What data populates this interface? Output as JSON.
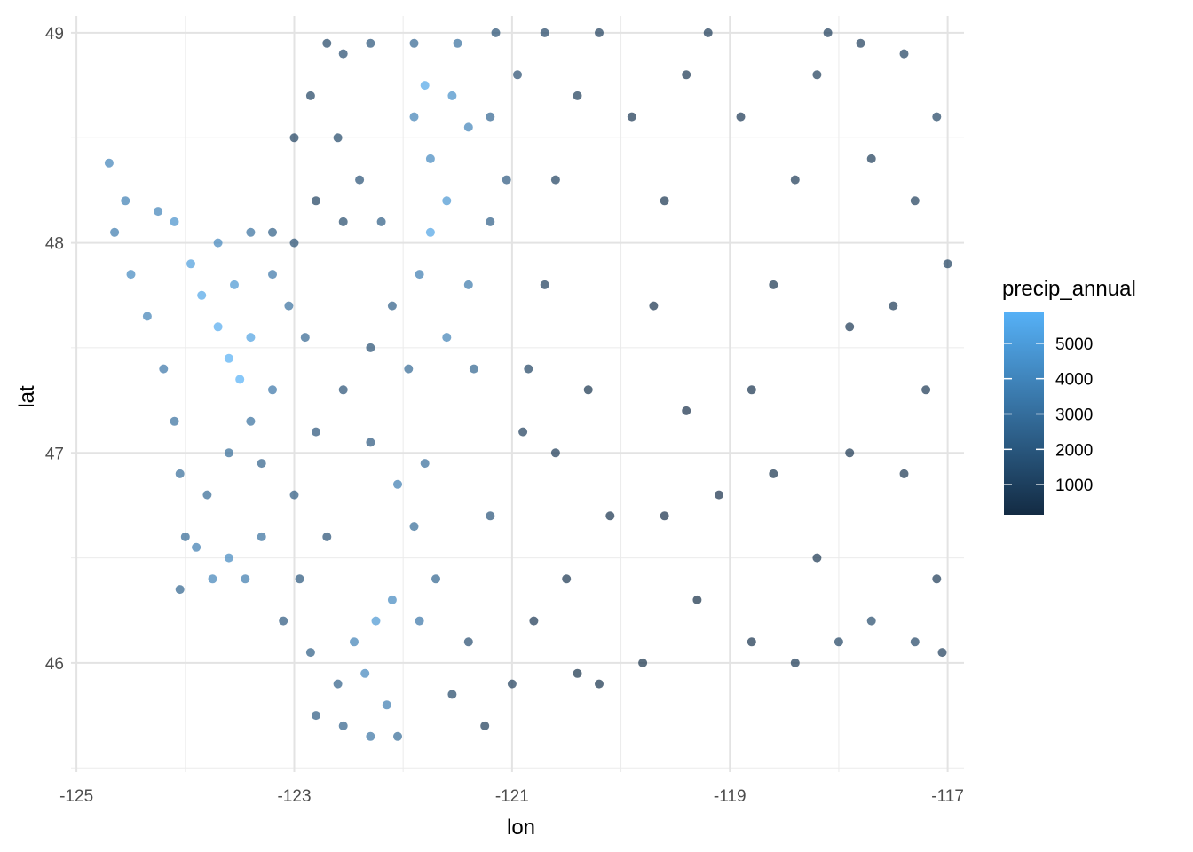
{
  "chart_data": {
    "type": "scatter",
    "xlabel": "lon",
    "ylabel": "lat",
    "xlim": [
      -125.05,
      -116.85
    ],
    "ylim": [
      45.48,
      49.08
    ],
    "x_ticks": [
      -125,
      -123,
      -121,
      -119,
      -117
    ],
    "x_tick_labels": [
      "-125",
      "-123",
      "-121",
      "-119",
      "-117"
    ],
    "y_ticks": [
      46,
      47,
      48,
      49
    ],
    "y_tick_labels": [
      "46",
      "47",
      "48",
      "49"
    ],
    "grid": true,
    "point_opacity": 0.7,
    "color_scale": {
      "variable": "precip_annual",
      "title": "precip_annual",
      "min": 150,
      "max": 5900,
      "low_color": "#132B43",
      "high_color": "#56B1F7",
      "breaks": [
        1000,
        2000,
        3000,
        4000,
        5000
      ],
      "break_labels": [
        "1000",
        "2000",
        "3000",
        "4000",
        "5000"
      ],
      "legend_position": "right"
    },
    "points": [
      [
        -124.7,
        48.38,
        3900
      ],
      [
        -124.55,
        48.2,
        3700
      ],
      [
        -124.65,
        48.05,
        3500
      ],
      [
        -124.5,
        47.85,
        4100
      ],
      [
        -124.35,
        47.65,
        3800
      ],
      [
        -124.2,
        47.4,
        3300
      ],
      [
        -124.1,
        47.15,
        3000
      ],
      [
        -124.05,
        46.9,
        2900
      ],
      [
        -124.0,
        46.6,
        2700
      ],
      [
        -124.05,
        46.35,
        2500
      ],
      [
        -123.9,
        46.55,
        3600
      ],
      [
        -123.75,
        46.4,
        3900
      ],
      [
        -123.6,
        46.5,
        4100
      ],
      [
        -123.45,
        46.4,
        3500
      ],
      [
        -123.3,
        46.6,
        3000
      ],
      [
        -124.25,
        48.15,
        3900
      ],
      [
        -124.1,
        48.1,
        4500
      ],
      [
        -123.95,
        47.9,
        5000
      ],
      [
        -123.85,
        47.75,
        5400
      ],
      [
        -123.7,
        47.6,
        5600
      ],
      [
        -123.6,
        47.45,
        5800
      ],
      [
        -123.5,
        47.35,
        5900
      ],
      [
        -123.4,
        47.55,
        5200
      ],
      [
        -123.55,
        47.8,
        4700
      ],
      [
        -123.7,
        48.0,
        4000
      ],
      [
        -123.4,
        48.05,
        3000
      ],
      [
        -123.2,
        48.05,
        2200
      ],
      [
        -123.0,
        48.0,
        1600
      ],
      [
        -123.2,
        47.85,
        3300
      ],
      [
        -123.05,
        47.7,
        3000
      ],
      [
        -122.9,
        47.55,
        2600
      ],
      [
        -123.2,
        47.3,
        3300
      ],
      [
        -123.4,
        47.15,
        3000
      ],
      [
        -123.6,
        47.0,
        2800
      ],
      [
        -123.8,
        46.8,
        2700
      ],
      [
        -123.3,
        46.95,
        2400
      ],
      [
        -123.0,
        46.8,
        2100
      ],
      [
        -122.8,
        47.1,
        1800
      ],
      [
        -122.7,
        46.6,
        1700
      ],
      [
        -122.95,
        46.4,
        1900
      ],
      [
        -123.1,
        46.2,
        2000
      ],
      [
        -122.85,
        46.05,
        2200
      ],
      [
        -122.6,
        45.9,
        2300
      ],
      [
        -122.45,
        46.1,
        3800
      ],
      [
        -122.25,
        46.2,
        4700
      ],
      [
        -122.35,
        45.95,
        4000
      ],
      [
        -122.15,
        45.8,
        3600
      ],
      [
        -122.3,
        45.65,
        3200
      ],
      [
        -122.05,
        45.65,
        2800
      ],
      [
        -122.55,
        45.7,
        2400
      ],
      [
        -122.8,
        45.75,
        2100
      ],
      [
        -122.1,
        46.3,
        4100
      ],
      [
        -121.85,
        46.2,
        3300
      ],
      [
        -121.7,
        46.4,
        2500
      ],
      [
        -121.9,
        46.65,
        2800
      ],
      [
        -122.05,
        46.85,
        3600
      ],
      [
        -121.8,
        46.95,
        2900
      ],
      [
        -122.3,
        47.05,
        2000
      ],
      [
        -122.55,
        47.3,
        1700
      ],
      [
        -122.3,
        47.5,
        1600
      ],
      [
        -122.1,
        47.7,
        2300
      ],
      [
        -121.85,
        47.85,
        3600
      ],
      [
        -121.75,
        48.05,
        5300
      ],
      [
        -121.6,
        48.2,
        4700
      ],
      [
        -121.75,
        48.4,
        4100
      ],
      [
        -121.9,
        48.6,
        3800
      ],
      [
        -121.8,
        48.75,
        5400
      ],
      [
        -121.55,
        48.7,
        4400
      ],
      [
        -121.4,
        48.55,
        3900
      ],
      [
        -121.5,
        48.95,
        3000
      ],
      [
        -121.9,
        48.95,
        2600
      ],
      [
        -122.3,
        48.95,
        1800
      ],
      [
        -122.55,
        48.9,
        1500
      ],
      [
        -122.7,
        48.95,
        1200
      ],
      [
        -122.85,
        48.7,
        1100
      ],
      [
        -123.0,
        48.5,
        1000
      ],
      [
        -122.6,
        48.5,
        1300
      ],
      [
        -122.4,
        48.3,
        1700
      ],
      [
        -122.2,
        48.1,
        2200
      ],
      [
        -122.55,
        48.1,
        1400
      ],
      [
        -122.8,
        48.2,
        1000
      ],
      [
        -121.95,
        47.4,
        2700
      ],
      [
        -121.6,
        47.55,
        3800
      ],
      [
        -121.35,
        47.4,
        2500
      ],
      [
        -121.4,
        47.8,
        3400
      ],
      [
        -121.2,
        48.1,
        2300
      ],
      [
        -121.05,
        48.3,
        2000
      ],
      [
        -121.2,
        48.6,
        2600
      ],
      [
        -120.95,
        48.8,
        1500
      ],
      [
        -121.2,
        46.7,
        1800
      ],
      [
        -121.4,
        46.1,
        1500
      ],
      [
        -121.55,
        45.85,
        1300
      ],
      [
        -121.25,
        45.7,
        800
      ],
      [
        -121.0,
        45.9,
        900
      ],
      [
        -120.8,
        46.2,
        600
      ],
      [
        -120.6,
        47.0,
        700
      ],
      [
        -120.85,
        47.4,
        1100
      ],
      [
        -120.7,
        47.8,
        900
      ],
      [
        -120.6,
        48.3,
        1000
      ],
      [
        -120.4,
        48.7,
        800
      ],
      [
        -120.2,
        49.0,
        900
      ],
      [
        -119.9,
        48.6,
        600
      ],
      [
        -119.6,
        48.2,
        500
      ],
      [
        -119.7,
        47.7,
        400
      ],
      [
        -119.4,
        47.2,
        300
      ],
      [
        -119.6,
        46.7,
        300
      ],
      [
        -119.3,
        46.3,
        250
      ],
      [
        -119.8,
        46.0,
        350
      ],
      [
        -120.2,
        45.9,
        450
      ],
      [
        -120.5,
        46.4,
        500
      ],
      [
        -120.1,
        46.7,
        400
      ],
      [
        -120.3,
        47.3,
        450
      ],
      [
        -119.1,
        46.8,
        300
      ],
      [
        -118.8,
        47.3,
        400
      ],
      [
        -118.6,
        47.8,
        500
      ],
      [
        -118.4,
        48.3,
        700
      ],
      [
        -118.2,
        48.8,
        800
      ],
      [
        -117.8,
        48.95,
        900
      ],
      [
        -117.4,
        48.9,
        1000
      ],
      [
        -117.1,
        48.6,
        1100
      ],
      [
        -117.3,
        48.2,
        900
      ],
      [
        -117.5,
        47.7,
        700
      ],
      [
        -117.2,
        47.3,
        600
      ],
      [
        -117.4,
        46.9,
        550
      ],
      [
        -117.1,
        46.4,
        700
      ],
      [
        -117.3,
        46.1,
        1200
      ],
      [
        -117.7,
        46.2,
        1400
      ],
      [
        -118.0,
        46.1,
        1100
      ],
      [
        -118.4,
        46.0,
        700
      ],
      [
        -118.8,
        46.1,
        400
      ],
      [
        -118.2,
        46.5,
        500
      ],
      [
        -118.6,
        46.9,
        450
      ],
      [
        -117.9,
        47.0,
        500
      ],
      [
        -117.9,
        47.6,
        600
      ],
      [
        -117.7,
        48.4,
        800
      ],
      [
        -118.9,
        48.6,
        600
      ],
      [
        -119.2,
        49.0,
        700
      ],
      [
        -119.4,
        48.8,
        550
      ],
      [
        -120.9,
        47.1,
        900
      ],
      [
        -120.4,
        45.95,
        350
      ],
      [
        -117.05,
        46.05,
        900
      ],
      [
        -117.0,
        47.9,
        1000
      ],
      [
        -118.1,
        49.0,
        850
      ],
      [
        -120.7,
        49.0,
        1200
      ],
      [
        -121.15,
        49.0,
        1600
      ]
    ]
  }
}
